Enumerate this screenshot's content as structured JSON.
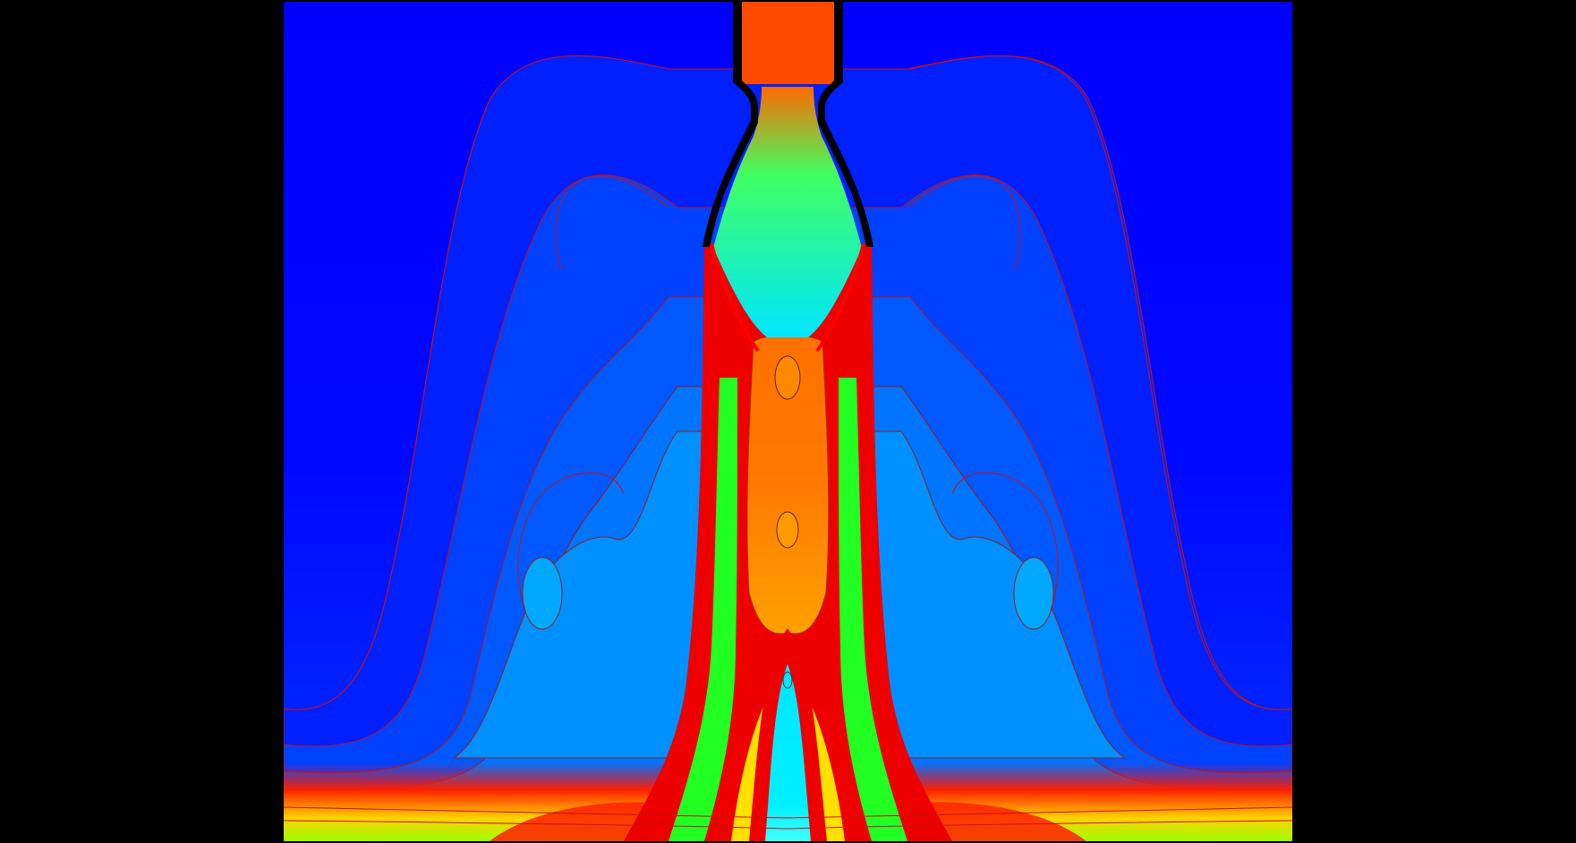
{
  "figure": {
    "type": "filled-contour-field",
    "symmetry": "mirror-vertical-axis",
    "colors": {
      "background": "#000000",
      "ambient": "#0000ff",
      "level_1": "#0030ff",
      "level_2": "#0060ff",
      "level_3": "#0090ff",
      "level_4": "#00b4ff",
      "cyan": "#00e6ff",
      "green": "#22ff22",
      "yellow": "#ffff00",
      "orange": "#ff7000",
      "inlet_orange": "#ff4a00",
      "red": "#ff0000",
      "contour_line_outer": "#cc1010",
      "contour_line_inner": "#551a1a",
      "nozzle_wall": "#000000"
    }
  }
}
